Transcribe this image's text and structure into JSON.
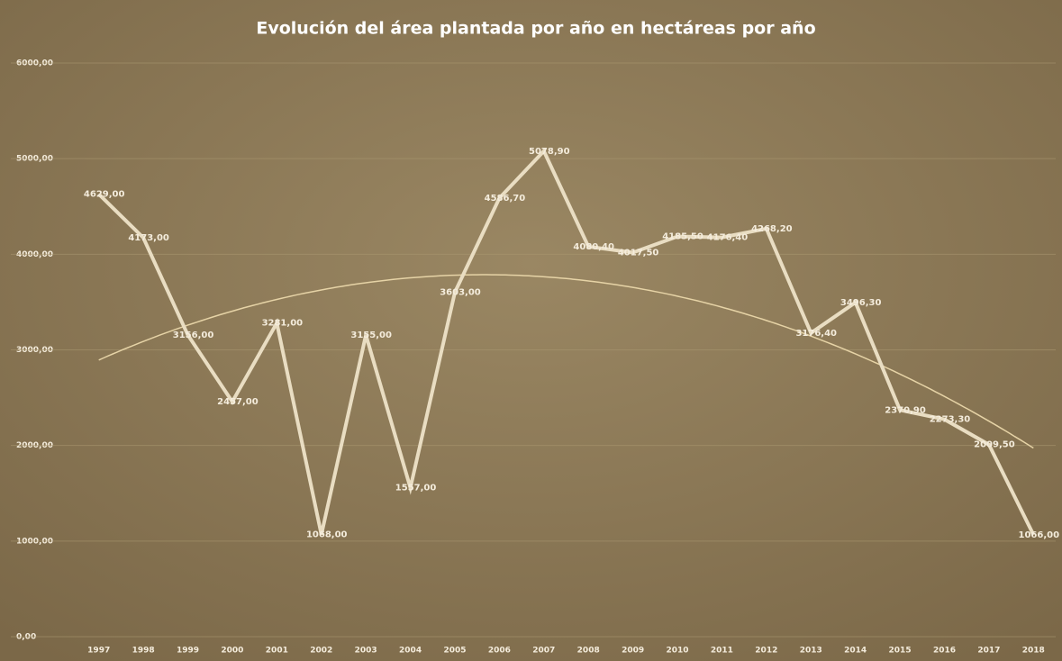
{
  "chart_data": {
    "type": "line",
    "title": "Evolución  del área plantada por año en hectáreas por año",
    "categories": [
      "1997",
      "1998",
      "1999",
      "2000",
      "2001",
      "2002",
      "2003",
      "2004",
      "2005",
      "2006",
      "2007",
      "2008",
      "2009",
      "2010",
      "2011",
      "2012",
      "2013",
      "2014",
      "2015",
      "2016",
      "2017",
      "2018"
    ],
    "series": [
      {
        "color": "#e9ddc2",
        "values": [
          4629,
          4173,
          3156,
          2457,
          3281,
          1068,
          3155,
          1557,
          3603,
          4586.7,
          5078.9,
          4080.4,
          4017.5,
          4185.5,
          4176.4,
          4268.2,
          3176.4,
          3496.3,
          2370.9,
          2273.3,
          2009.5,
          1066
        ],
        "value_labels": [
          "4629,00",
          "4173,00",
          "3156,00",
          "2457,00",
          "3281,00",
          "1068,00",
          "3155,00",
          "1557,00",
          "3603,00",
          "4586,70",
          "5078,90",
          "4080,40",
          "4017,50",
          "4185,50",
          "4176,40",
          "4268,20",
          "3176,40",
          "3496,30",
          "2370,90",
          "2273,30",
          "2009,50",
          "1066,00"
        ]
      }
    ],
    "trendline": {
      "type": "polynomial",
      "order": 2,
      "color": "#e6d3a6"
    },
    "ylim": [
      0,
      6000
    ],
    "yticks": [
      {
        "value": 0,
        "label": "0,00"
      },
      {
        "value": 1000,
        "label": "1000,00"
      },
      {
        "value": 2000,
        "label": "2000,00"
      },
      {
        "value": 3000,
        "label": "3000,00"
      },
      {
        "value": 4000,
        "label": "4000,00"
      },
      {
        "value": 5000,
        "label": "5000,00"
      },
      {
        "value": 6000,
        "label": "6000,00"
      }
    ],
    "grid": true
  }
}
